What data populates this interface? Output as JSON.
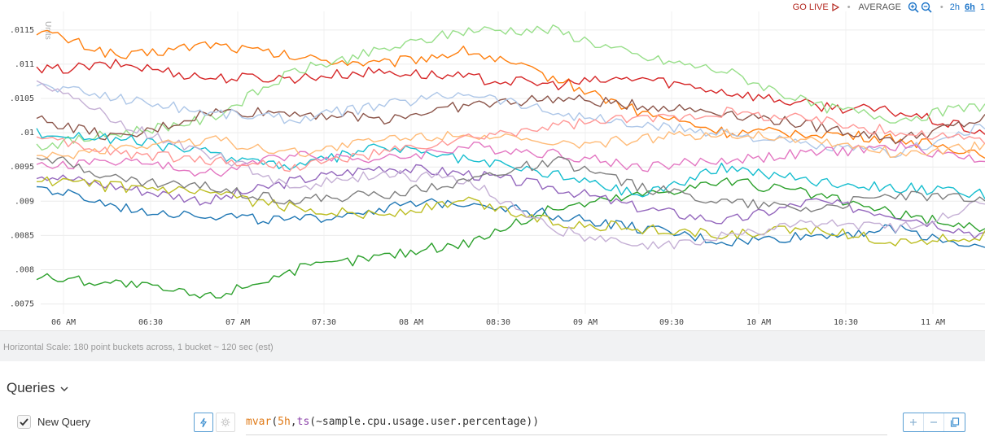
{
  "toolbar": {
    "go_live": "GO LIVE",
    "aggregation": "AVERAGE",
    "ranges": [
      "2h",
      "6h",
      "1"
    ],
    "selected_range": "6h",
    "accent_color": "#1a73c8",
    "live_color": "#b3261e"
  },
  "chart_data": {
    "type": "line",
    "ylabel": "Units",
    "ylim": [
      0.0074,
      0.0117
    ],
    "yticks": [
      ".0115",
      ".011",
      ".0105",
      ".01",
      ".0095",
      ".009",
      ".0085",
      ".008",
      ".0075"
    ],
    "xticks": [
      "06 AM",
      "06:30",
      "07 AM",
      "07:30",
      "08 AM",
      "08:30",
      "09 AM",
      "09:30",
      "10 AM",
      "10:30",
      "11 AM"
    ],
    "x_unit": "minutes after 05:45",
    "x": [
      0,
      30,
      60,
      90,
      120,
      150,
      180,
      210,
      240,
      270,
      300,
      330
    ],
    "grid": true,
    "legend": "none",
    "series": [
      {
        "color": "#ff7f0e",
        "values": [
          0.0115,
          0.0111,
          0.0113,
          0.0111,
          0.011,
          0.0112,
          0.0108,
          0.0103,
          0.01,
          0.01,
          0.0099,
          0.0097
        ]
      },
      {
        "color": "#d62728",
        "values": [
          0.0109,
          0.011,
          0.0108,
          0.0108,
          0.0109,
          0.0108,
          0.0107,
          0.0108,
          0.0106,
          0.0104,
          0.0103,
          0.01
        ]
      },
      {
        "color": "#98df8a",
        "values": [
          0.0098,
          0.01,
          0.0102,
          0.0109,
          0.0112,
          0.0115,
          0.0115,
          0.0111,
          0.0109,
          0.0104,
          0.0102,
          0.0104
        ]
      },
      {
        "color": "#8c564b",
        "values": [
          0.0102,
          0.0099,
          0.0103,
          0.0103,
          0.0102,
          0.0104,
          0.0105,
          0.0104,
          0.0103,
          0.0101,
          0.0099,
          0.0102
        ]
      },
      {
        "color": "#aec7e8",
        "values": [
          0.0107,
          0.0105,
          0.0103,
          0.0102,
          0.0104,
          0.0106,
          0.0103,
          0.0101,
          0.01,
          0.0098,
          0.0097,
          0.0101
        ]
      },
      {
        "color": "#2ca02c",
        "values": [
          0.0079,
          0.0078,
          0.0076,
          0.008,
          0.0082,
          0.0084,
          0.0089,
          0.0091,
          0.0093,
          0.0091,
          0.0088,
          0.0086
        ]
      },
      {
        "color": "#9467bd",
        "values": [
          0.0094,
          0.0092,
          0.009,
          0.0093,
          0.0095,
          0.0094,
          0.0092,
          0.0089,
          0.0087,
          0.009,
          0.0088,
          0.0085
        ]
      },
      {
        "color": "#17becf",
        "values": [
          0.01,
          0.0099,
          0.0097,
          0.0095,
          0.0098,
          0.0096,
          0.0094,
          0.0091,
          0.0095,
          0.0093,
          0.0092,
          0.0091
        ]
      },
      {
        "color": "#e377c2",
        "values": [
          0.0095,
          0.0096,
          0.0094,
          0.0097,
          0.0096,
          0.0098,
          0.0097,
          0.0095,
          0.0096,
          0.0097,
          0.0098,
          0.0096
        ]
      },
      {
        "color": "#1f77b4",
        "values": [
          0.0092,
          0.0089,
          0.0088,
          0.0087,
          0.0089,
          0.009,
          0.0088,
          0.0086,
          0.0084,
          0.0085,
          0.0086,
          0.0083
        ]
      },
      {
        "color": "#bcbd22",
        "values": [
          0.0093,
          0.0092,
          0.0091,
          0.0089,
          0.0088,
          0.009,
          0.0087,
          0.0086,
          0.0085,
          0.0086,
          0.0084,
          0.0085
        ]
      },
      {
        "color": "#c5b0d5",
        "values": [
          0.0108,
          0.0101,
          0.0097,
          0.0092,
          0.0094,
          0.0093,
          0.0086,
          0.0083,
          0.0085,
          0.0087,
          0.0086,
          0.009
        ]
      },
      {
        "color": "#7f7f7f",
        "values": [
          0.0097,
          0.0093,
          0.0092,
          0.009,
          0.0091,
          0.0093,
          0.0096,
          0.0092,
          0.009,
          0.0089,
          0.0091,
          0.009
        ]
      },
      {
        "color": "#ffbb78",
        "values": [
          0.0096,
          0.0098,
          0.0099,
          0.0097,
          0.0099,
          0.01,
          0.0098,
          0.0099,
          0.01,
          0.0099,
          0.0097,
          0.0098
        ]
      },
      {
        "color": "#ff9896",
        "values": [
          0.0099,
          0.0097,
          0.0096,
          0.0095,
          0.0097,
          0.0099,
          0.0101,
          0.0102,
          0.0103,
          0.0102,
          0.01,
          0.0099
        ]
      }
    ]
  },
  "scale_note": "Horizontal Scale: 180 point buckets across, 1 bucket ~ 120 sec (est)",
  "queries": {
    "title": "Queries",
    "items": [
      {
        "checked": true,
        "name": "New Query",
        "expression": {
          "fn": "mvar",
          "open": "(",
          "window": "5h",
          "comma": ",",
          "ts": "ts",
          "body": "(~sample.cpu.usage.user.percentage))"
        }
      }
    ]
  }
}
